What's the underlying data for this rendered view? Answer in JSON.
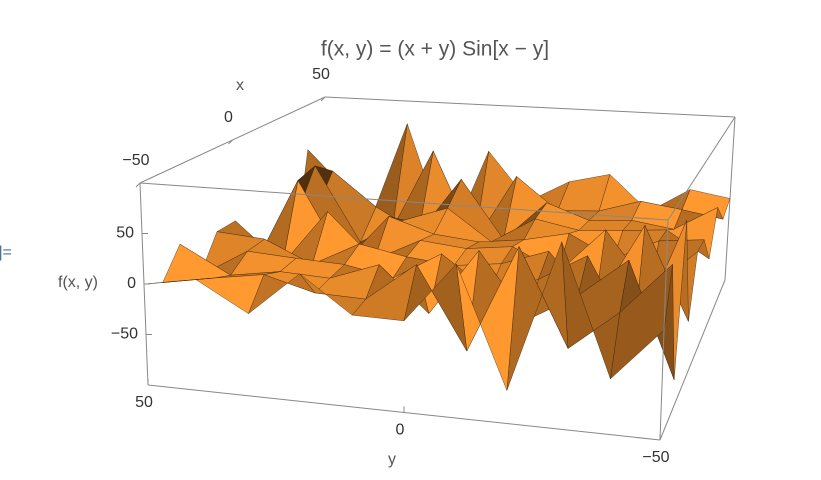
{
  "cell_label": "]=",
  "chart_data": {
    "type": "surface3d",
    "title": "f(x, y) = (x + y) Sin[x − y]",
    "x_label": "x",
    "y_label": "y",
    "z_label": "f(x, y)",
    "color": "#e0862a",
    "edge_color": "#2a1a0a",
    "x": [
      -50,
      -40,
      -30,
      -20,
      -10,
      0,
      10,
      20,
      30,
      40,
      50
    ],
    "y": [
      -50,
      -40,
      -30,
      -20,
      -10,
      0,
      10,
      20,
      30,
      40,
      50
    ],
    "z": [
      [
        0,
        -49.0,
        73.0,
        -69.2,
        44.7,
        -13.1,
        -12.2,
        23.2,
        -19.9,
        8.9,
        0
      ],
      [
        49.0,
        0,
        -38.1,
        54.8,
        -49.4,
        29.8,
        -7.9,
        -6.1,
        7.7,
        0,
        -8.9
      ],
      [
        -73.0,
        38.1,
        0,
        -27.2,
        36.5,
        -29.6,
        14.9,
        -2.6,
        0,
        -7.7,
        19.9
      ],
      [
        69.2,
        -54.8,
        27.2,
        0,
        -16.3,
        18.3,
        -9.9,
        0,
        2.6,
        6.1,
        -23.2
      ],
      [
        -44.7,
        49.4,
        -36.5,
        16.3,
        0,
        -5.4,
        0,
        9.9,
        -14.9,
        7.9,
        12.2
      ],
      [
        13.1,
        -29.8,
        29.6,
        -18.3,
        5.4,
        0,
        5.4,
        -18.3,
        29.6,
        -29.8,
        13.1
      ],
      [
        12.2,
        7.9,
        -14.9,
        9.9,
        0,
        -5.4,
        0,
        16.3,
        -36.5,
        49.4,
        -44.7
      ],
      [
        -23.2,
        6.1,
        2.6,
        0,
        9.9,
        -18.3,
        16.3,
        0,
        -27.2,
        54.8,
        -69.2
      ],
      [
        19.9,
        -7.7,
        0,
        -2.6,
        14.9,
        -29.6,
        36.5,
        -27.2,
        0,
        38.1,
        -73.0
      ],
      [
        -8.9,
        0,
        7.7,
        -6.1,
        -7.9,
        29.8,
        -49.4,
        54.8,
        -38.1,
        0,
        49.0
      ],
      [
        0,
        8.9,
        -19.9,
        23.2,
        12.2,
        -13.1,
        44.7,
        -69.2,
        73.0,
        -49.0,
        0
      ]
    ],
    "xlim": [
      -50,
      50
    ],
    "ylim": [
      -50,
      50
    ],
    "zlim": [
      -100,
      100
    ],
    "xticks": [
      {
        "value": -50,
        "label": "−50"
      },
      0,
      50
    ],
    "yticks": [
      {
        "value": -50,
        "label": "−50"
      },
      0,
      50
    ],
    "zticks": [
      {
        "value": -50,
        "label": "−50"
      },
      0,
      50
    ]
  }
}
